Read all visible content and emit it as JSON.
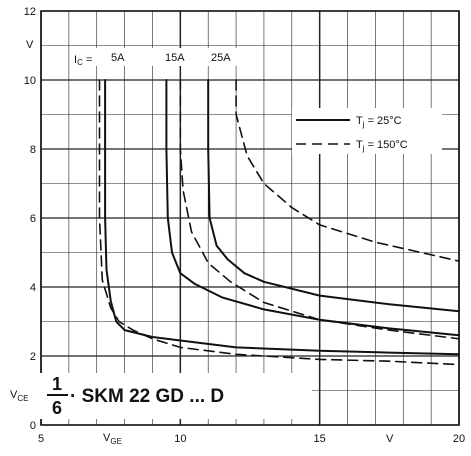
{
  "chart_data": {
    "type": "line",
    "title": "",
    "xlabel": "V_GE",
    "x_unit": "V",
    "ylabel": "V_CE",
    "y_unit": "V",
    "xlim": [
      5,
      20
    ],
    "ylim": [
      0,
      12
    ],
    "grid": true,
    "x_ticks": [
      5,
      10,
      15,
      20
    ],
    "y_ticks": [
      0,
      2,
      4,
      6,
      8,
      10,
      12
    ],
    "x_axis_label": "V",
    "y_axis_label": "V",
    "x_tick_labels": [
      "5",
      "10",
      "15",
      "20"
    ],
    "y_tick_labels": [
      "0",
      "2",
      "4",
      "6",
      "8",
      "10",
      "12"
    ],
    "current_prefix": "I_C =",
    "current_labels": [
      "5A",
      "15A",
      "25A"
    ],
    "legend": {
      "placement": "right",
      "entries": [
        {
          "style": "solid",
          "label": "Tj = 25°C"
        },
        {
          "style": "dashed",
          "label": "Tj = 150°C"
        }
      ]
    },
    "device_label": {
      "fraction_num": "1",
      "fraction_den": "6",
      "text": "· SKM 22 GD ... D"
    },
    "series": [
      {
        "name": "5A, Tj = 25°C",
        "style": "solid",
        "points": [
          [
            7.3,
            10
          ],
          [
            7.3,
            6
          ],
          [
            7.35,
            4.5
          ],
          [
            7.5,
            3.6
          ],
          [
            7.7,
            3.0
          ],
          [
            8.0,
            2.75
          ],
          [
            9.0,
            2.55
          ],
          [
            10,
            2.45
          ],
          [
            12,
            2.25
          ],
          [
            15,
            2.15
          ],
          [
            17.5,
            2.1
          ],
          [
            20,
            2.05
          ]
        ]
      },
      {
        "name": "5A, Tj = 150°C",
        "style": "dashed",
        "points": [
          [
            7.1,
            10
          ],
          [
            7.1,
            6
          ],
          [
            7.2,
            4.2
          ],
          [
            7.5,
            3.4
          ],
          [
            7.8,
            3.0
          ],
          [
            8.3,
            2.75
          ],
          [
            9.0,
            2.5
          ],
          [
            10,
            2.25
          ],
          [
            12,
            2.05
          ],
          [
            15,
            1.9
          ],
          [
            17.5,
            1.85
          ],
          [
            20,
            1.75
          ]
        ]
      },
      {
        "name": "15A, Tj = 25°C",
        "style": "solid",
        "points": [
          [
            9.5,
            10
          ],
          [
            9.5,
            8
          ],
          [
            9.55,
            6
          ],
          [
            9.7,
            5
          ],
          [
            10,
            4.4
          ],
          [
            10.5,
            4.1
          ],
          [
            11.5,
            3.7
          ],
          [
            13,
            3.35
          ],
          [
            15,
            3.05
          ],
          [
            17.5,
            2.8
          ],
          [
            20,
            2.6
          ]
        ]
      },
      {
        "name": "15A, Tj = 150°C",
        "style": "dashed",
        "points": [
          [
            10,
            10
          ],
          [
            10,
            8
          ],
          [
            10.1,
            6.8
          ],
          [
            10.4,
            5.6
          ],
          [
            11,
            4.7
          ],
          [
            11.8,
            4.15
          ],
          [
            13,
            3.55
          ],
          [
            15,
            3.05
          ],
          [
            17.5,
            2.75
          ],
          [
            20,
            2.5
          ]
        ]
      },
      {
        "name": "25A, Tj = 25°C",
        "style": "solid",
        "points": [
          [
            11,
            10
          ],
          [
            11,
            8
          ],
          [
            11.05,
            6
          ],
          [
            11.3,
            5.2
          ],
          [
            11.7,
            4.8
          ],
          [
            12.3,
            4.4
          ],
          [
            13,
            4.15
          ],
          [
            15,
            3.75
          ],
          [
            17.5,
            3.5
          ],
          [
            20,
            3.3
          ]
        ]
      },
      {
        "name": "25A, Tj = 150°C",
        "style": "dashed",
        "points": [
          [
            12,
            10
          ],
          [
            12,
            9
          ],
          [
            12.4,
            7.8
          ],
          [
            13,
            7
          ],
          [
            14,
            6.3
          ],
          [
            15,
            5.8
          ],
          [
            17,
            5.3
          ],
          [
            20,
            4.75
          ]
        ]
      }
    ]
  }
}
